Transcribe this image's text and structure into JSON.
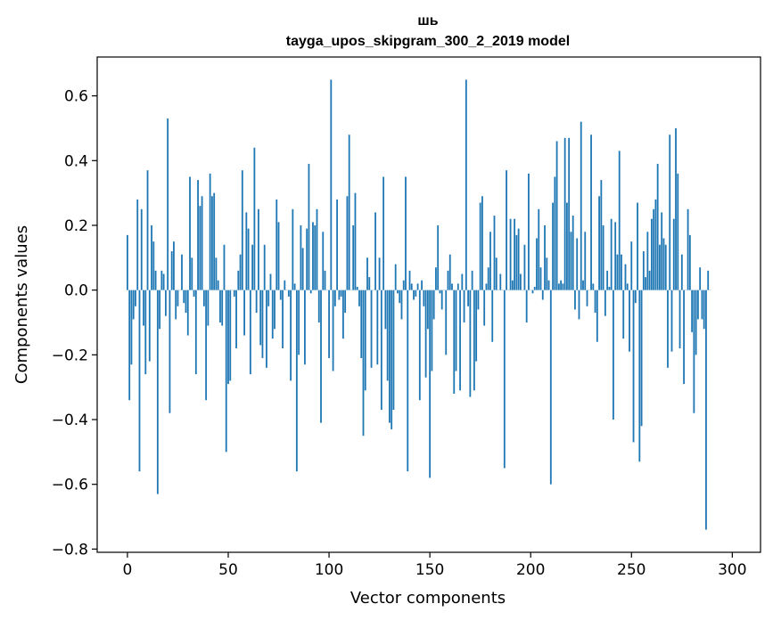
{
  "chart_data": {
    "type": "bar",
    "title_line1": "шь",
    "title_line2": "tayga_upos_skipgram_300_2_2019 model",
    "xlabel": "Vector components",
    "ylabel": "Components values",
    "xlim": [
      -15,
      314
    ],
    "ylim": [
      -0.81,
      0.72
    ],
    "x_ticks": [
      0,
      50,
      100,
      150,
      200,
      250,
      300
    ],
    "x_tick_labels": [
      "0",
      "50",
      "100",
      "150",
      "200",
      "250",
      "300"
    ],
    "y_ticks": [
      -0.8,
      -0.6,
      -0.4,
      -0.2,
      0.0,
      0.2,
      0.4,
      0.6
    ],
    "y_tick_labels": [
      "−0.8",
      "−0.6",
      "−0.4",
      "−0.2",
      "0.0",
      "0.2",
      "0.4",
      "0.6"
    ],
    "bar_color": "#1f77b4",
    "grid": false,
    "values": [
      0.17,
      -0.34,
      -0.23,
      -0.09,
      -0.05,
      0.28,
      -0.56,
      0.25,
      -0.11,
      -0.26,
      0.37,
      -0.22,
      0.2,
      0.15,
      0.06,
      -0.63,
      -0.12,
      0.06,
      0.05,
      -0.08,
      0.53,
      -0.38,
      0.12,
      0.15,
      -0.09,
      -0.05,
      0.0,
      0.11,
      -0.04,
      -0.07,
      -0.14,
      0.35,
      0.1,
      -0.02,
      -0.26,
      0.34,
      0.26,
      0.29,
      -0.05,
      -0.34,
      -0.11,
      0.36,
      0.29,
      0.3,
      0.1,
      0.03,
      -0.1,
      -0.11,
      0.14,
      -0.5,
      -0.29,
      -0.28,
      0.0,
      -0.02,
      -0.18,
      0.06,
      0.11,
      0.37,
      -0.14,
      0.24,
      0.19,
      -0.26,
      0.14,
      0.44,
      -0.07,
      0.25,
      -0.17,
      -0.21,
      0.14,
      -0.24,
      -0.05,
      0.05,
      -0.15,
      -0.12,
      0.28,
      0.21,
      -0.03,
      -0.18,
      0.03,
      0.0,
      -0.02,
      -0.28,
      0.25,
      0.02,
      -0.56,
      -0.2,
      0.2,
      0.13,
      -0.23,
      0.19,
      0.39,
      -0.01,
      0.21,
      0.2,
      0.25,
      -0.1,
      -0.41,
      0.18,
      0.06,
      0.0,
      -0.21,
      0.65,
      -0.25,
      -0.05,
      0.28,
      -0.03,
      -0.02,
      -0.15,
      -0.07,
      0.29,
      0.48,
      0.0,
      0.2,
      0.3,
      0.01,
      -0.05,
      -0.21,
      -0.45,
      -0.31,
      0.1,
      0.04,
      -0.24,
      0.0,
      0.24,
      -0.23,
      0.1,
      -0.37,
      0.35,
      -0.12,
      -0.28,
      -0.41,
      -0.43,
      -0.37,
      0.08,
      -0.01,
      -0.04,
      -0.09,
      0.03,
      0.35,
      -0.56,
      0.06,
      0.02,
      -0.03,
      -0.02,
      0.02,
      -0.34,
      0.03,
      -0.05,
      -0.27,
      -0.12,
      -0.58,
      -0.25,
      -0.09,
      0.07,
      0.2,
      -0.01,
      -0.06,
      0.0,
      -0.2,
      0.06,
      0.11,
      0.02,
      -0.32,
      -0.25,
      0.02,
      -0.31,
      0.05,
      -0.1,
      0.65,
      -0.05,
      -0.33,
      0.06,
      -0.31,
      -0.22,
      -0.06,
      0.27,
      0.29,
      -0.11,
      0.02,
      0.07,
      0.18,
      -0.16,
      0.23,
      0.1,
      0.0,
      0.05,
      0.0,
      -0.55,
      0.37,
      0.0,
      0.22,
      0.03,
      0.22,
      0.17,
      0.19,
      0.05,
      0.0,
      0.14,
      -0.1,
      0.36,
      0.0,
      -0.01,
      0.01,
      0.16,
      0.25,
      0.07,
      -0.03,
      0.2,
      0.1,
      0.03,
      -0.6,
      0.27,
      0.35,
      0.46,
      0.02,
      0.03,
      0.02,
      0.47,
      0.27,
      0.47,
      0.18,
      0.23,
      -0.06,
      0.16,
      -0.09,
      0.52,
      0.03,
      0.18,
      -0.05,
      0.0,
      0.48,
      0.02,
      -0.07,
      -0.16,
      0.29,
      0.34,
      0.2,
      -0.08,
      0.06,
      0.01,
      0.22,
      -0.4,
      0.21,
      0.11,
      0.43,
      0.11,
      -0.15,
      0.08,
      0.02,
      -0.19,
      0.15,
      -0.47,
      -0.04,
      0.27,
      -0.53,
      -0.42,
      0.12,
      0.04,
      0.18,
      0.06,
      0.22,
      0.25,
      0.28,
      0.39,
      0.14,
      0.24,
      0.16,
      0.14,
      -0.24,
      0.48,
      -0.19,
      0.22,
      0.5,
      0.36,
      -0.18,
      0.11,
      -0.29,
      0.0,
      0.25,
      0.17,
      -0.13,
      -0.38,
      -0.2,
      -0.09,
      0.07,
      -0.09,
      -0.12,
      -0.74,
      0.06,
      0.0
    ]
  }
}
